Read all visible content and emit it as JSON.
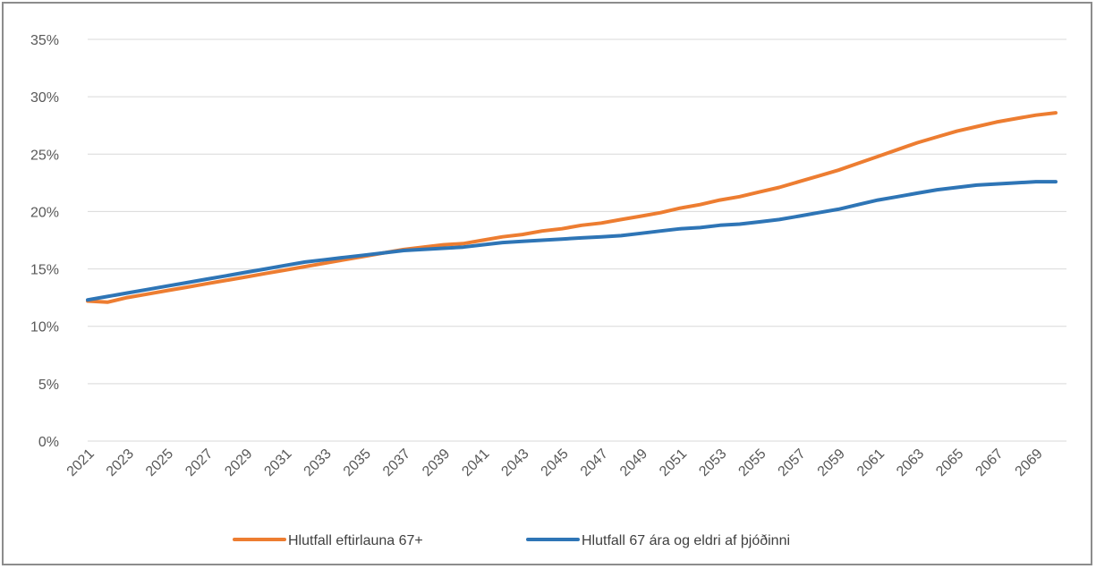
{
  "chart_data": {
    "type": "line",
    "title": "",
    "xlabel": "",
    "ylabel": "",
    "ylim": [
      0,
      35
    ],
    "y_ticks": [
      "0%",
      "5%",
      "10%",
      "15%",
      "20%",
      "25%",
      "30%",
      "35%"
    ],
    "y_tick_values": [
      0,
      5,
      10,
      15,
      20,
      25,
      30,
      35
    ],
    "x": [
      2021,
      2022,
      2023,
      2024,
      2025,
      2026,
      2027,
      2028,
      2029,
      2030,
      2031,
      2032,
      2033,
      2034,
      2035,
      2036,
      2037,
      2038,
      2039,
      2040,
      2041,
      2042,
      2043,
      2044,
      2045,
      2046,
      2047,
      2048,
      2049,
      2050,
      2051,
      2052,
      2053,
      2054,
      2055,
      2056,
      2057,
      2058,
      2059,
      2060,
      2061,
      2062,
      2063,
      2064,
      2065,
      2066,
      2067,
      2068,
      2069,
      2070
    ],
    "x_tick_labels": [
      "2021",
      "2023",
      "2025",
      "2027",
      "2029",
      "2031",
      "2033",
      "2035",
      "2037",
      "2039",
      "2041",
      "2043",
      "2045",
      "2047",
      "2049",
      "2051",
      "2053",
      "2055",
      "2057",
      "2059",
      "2061",
      "2063",
      "2065",
      "2067",
      "2069"
    ],
    "grid": true,
    "legend_position": "bottom",
    "series": [
      {
        "name": "Hlutfall eftirlauna 67+",
        "color": "#ED7D31",
        "values": [
          12.2,
          12.1,
          12.5,
          12.8,
          13.1,
          13.4,
          13.7,
          14.0,
          14.3,
          14.6,
          14.9,
          15.2,
          15.5,
          15.8,
          16.1,
          16.4,
          16.7,
          16.9,
          17.1,
          17.2,
          17.5,
          17.8,
          18.0,
          18.3,
          18.5,
          18.8,
          19.0,
          19.3,
          19.6,
          19.9,
          20.3,
          20.6,
          21.0,
          21.3,
          21.7,
          22.1,
          22.6,
          23.1,
          23.6,
          24.2,
          24.8,
          25.4,
          26.0,
          26.5,
          27.0,
          27.4,
          27.8,
          28.1,
          28.4,
          28.6
        ]
      },
      {
        "name": "Hlutfall 67 ára og eldri af þjóðinni",
        "color": "#2E75B6",
        "values": [
          12.3,
          12.6,
          12.9,
          13.2,
          13.5,
          13.8,
          14.1,
          14.4,
          14.7,
          15.0,
          15.3,
          15.6,
          15.8,
          16.0,
          16.2,
          16.4,
          16.6,
          16.7,
          16.8,
          16.9,
          17.1,
          17.3,
          17.4,
          17.5,
          17.6,
          17.7,
          17.8,
          17.9,
          18.1,
          18.3,
          18.5,
          18.6,
          18.8,
          18.9,
          19.1,
          19.3,
          19.6,
          19.9,
          20.2,
          20.6,
          21.0,
          21.3,
          21.6,
          21.9,
          22.1,
          22.3,
          22.4,
          22.5,
          22.6,
          22.6
        ]
      }
    ]
  }
}
